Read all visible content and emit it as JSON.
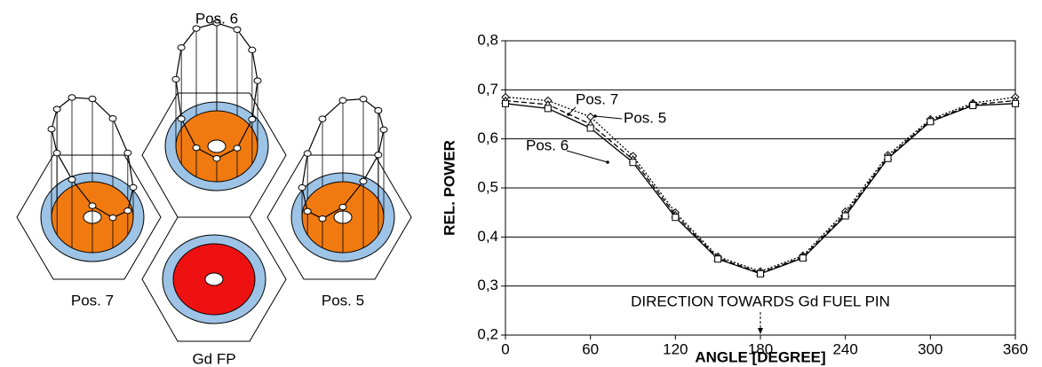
{
  "diagram": {
    "labels": [
      "Gd FP"
    ]
  },
  "chart_data": {
    "type": "line",
    "x_label": "ANGLE [DEGREE]",
    "y_label": "REL. POWER",
    "annotation": "DIRECTION TOWARDS Gd FUEL PIN",
    "x": [
      0,
      30,
      60,
      90,
      120,
      150,
      180,
      210,
      240,
      270,
      300,
      330,
      360
    ],
    "xlim": [
      0,
      360
    ],
    "xticks": [
      0,
      60,
      120,
      180,
      240,
      300,
      360
    ],
    "ylim": [
      0.2,
      0.8
    ],
    "yticks": [
      {
        "value": 0.2,
        "label": "0,2"
      },
      {
        "value": 0.3,
        "label": "0,3"
      },
      {
        "value": 0.4,
        "label": "0,4"
      },
      {
        "value": 0.5,
        "label": "0,5"
      },
      {
        "value": 0.6,
        "label": "0,6"
      },
      {
        "value": 0.7,
        "label": "0,7"
      },
      {
        "value": 0.8,
        "label": "0,8"
      }
    ],
    "grid": true,
    "series": [
      {
        "name": "Pos. 7",
        "color": "#000000",
        "dash": "dotted",
        "marker": "diamond",
        "values": [
          0.685,
          0.678,
          0.645,
          0.565,
          0.45,
          0.36,
          0.33,
          0.362,
          0.452,
          0.567,
          0.64,
          0.673,
          0.685
        ]
      },
      {
        "name": "Pos. 5",
        "color": "#000000",
        "dash": "dashed",
        "marker": "triangle",
        "values": [
          0.678,
          0.67,
          0.63,
          0.558,
          0.445,
          0.357,
          0.327,
          0.359,
          0.447,
          0.563,
          0.637,
          0.67,
          0.678
        ]
      },
      {
        "name": "Pos. 6",
        "color": "#000000",
        "dash": "solid",
        "marker": "square",
        "values": [
          0.672,
          0.662,
          0.622,
          0.552,
          0.44,
          0.355,
          0.325,
          0.357,
          0.443,
          0.56,
          0.635,
          0.668,
          0.672
        ]
      }
    ]
  }
}
